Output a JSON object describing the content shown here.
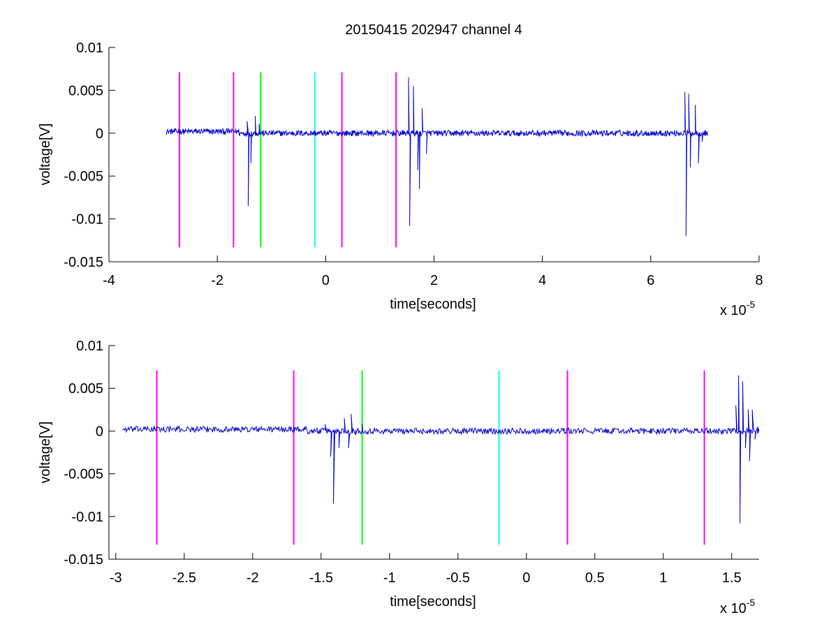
{
  "figure": {
    "title": "20150415 202947 channel 4",
    "background": "#ffffff"
  },
  "chart_data": [
    {
      "type": "line",
      "title": "20150415 202947 channel 4",
      "xlabel": "time[seconds]",
      "ylabel": "voltage[V]",
      "x_exponent_label": "x 10",
      "x_exponent": "-5",
      "xlim": [
        -4,
        8
      ],
      "ylim": [
        -0.015,
        0.01
      ],
      "xticks": [
        -4,
        -2,
        0,
        2,
        4,
        6,
        8
      ],
      "xtick_labels": [
        "-4",
        "-2",
        "0",
        "2",
        "4",
        "6",
        "8"
      ],
      "yticks": [
        -0.015,
        -0.01,
        -0.005,
        0,
        0.005,
        0.01
      ],
      "ytick_labels": [
        "-0.015",
        "-0.01",
        "-0.005",
        "0",
        "0.005",
        "0.01"
      ],
      "grid": false,
      "box": "left-bottom",
      "signal": {
        "color": "#0000cc",
        "x_start": -2.95,
        "x_end": 7.05,
        "baseline_noise": 0.00035,
        "features": [
          {
            "x": -2.72,
            "y": 0.0005
          },
          {
            "x": -1.45,
            "y": 0.0014
          },
          {
            "x": -1.43,
            "y": -0.0085
          },
          {
            "x": -1.38,
            "y": -0.0035
          },
          {
            "x": -1.3,
            "y": 0.002
          },
          {
            "x": -1.23,
            "y": 0.0011
          },
          {
            "x": 1.53,
            "y": 0.0065
          },
          {
            "x": 1.55,
            "y": -0.0108
          },
          {
            "x": 1.62,
            "y": 0.0055
          },
          {
            "x": 1.7,
            "y": -0.0043
          },
          {
            "x": 1.73,
            "y": -0.0065
          },
          {
            "x": 1.78,
            "y": 0.0029
          },
          {
            "x": 1.86,
            "y": -0.0024
          },
          {
            "x": 6.63,
            "y": 0.0048
          },
          {
            "x": 6.65,
            "y": -0.012
          },
          {
            "x": 6.7,
            "y": 0.0046
          },
          {
            "x": 6.73,
            "y": -0.004
          },
          {
            "x": 6.82,
            "y": 0.0033
          },
          {
            "x": 6.88,
            "y": -0.0035
          },
          {
            "x": 6.95,
            "y": -0.001
          }
        ]
      },
      "markers": [
        {
          "x": -2.7,
          "color": "#ff00ff"
        },
        {
          "x": -1.7,
          "color": "#ff00ff"
        },
        {
          "x": -1.2,
          "color": "#00ff00"
        },
        {
          "x": -0.2,
          "color": "#00ffff"
        },
        {
          "x": 0.3,
          "color": "#ff00ff"
        },
        {
          "x": 1.3,
          "color": "#ff00ff"
        }
      ],
      "marker_range": [
        -0.0133,
        0.0071
      ]
    },
    {
      "type": "line",
      "title": "",
      "xlabel": "time[seconds]",
      "ylabel": "voltage[V]",
      "x_exponent_label": "x 10",
      "x_exponent": "-5",
      "xlim": [
        -3.05,
        1.7
      ],
      "ylim": [
        -0.015,
        0.01
      ],
      "xticks": [
        -3,
        -2.5,
        -2,
        -1.5,
        -1,
        -0.5,
        0,
        0.5,
        1,
        1.5
      ],
      "xtick_labels": [
        "-3",
        "-2.5",
        "-2",
        "-1.5",
        "-1",
        "-0.5",
        "0",
        "0.5",
        "1",
        "1.5"
      ],
      "yticks": [
        -0.015,
        -0.01,
        -0.005,
        0,
        0.005,
        0.01
      ],
      "ytick_labels": [
        "-0.015",
        "-0.01",
        "-0.005",
        "0",
        "0.005",
        "0.01"
      ],
      "grid": false,
      "box": "left-bottom",
      "signal": {
        "color": "#0000cc",
        "x_start": -2.95,
        "x_end": 1.7,
        "baseline_noise": 0.00035,
        "features": [
          {
            "x": -2.72,
            "y": 0.0006
          },
          {
            "x": -1.47,
            "y": 0.0008
          },
          {
            "x": -1.43,
            "y": -0.003
          },
          {
            "x": -1.41,
            "y": -0.0085
          },
          {
            "x": -1.37,
            "y": -0.002
          },
          {
            "x": -1.33,
            "y": 0.0015
          },
          {
            "x": -1.3,
            "y": -0.002
          },
          {
            "x": -1.28,
            "y": 0.002
          },
          {
            "x": -1.25,
            "y": -0.0005
          },
          {
            "x": -1.2,
            "y": 0.0008
          },
          {
            "x": 1.53,
            "y": 0.003
          },
          {
            "x": 1.55,
            "y": 0.0065
          },
          {
            "x": 1.56,
            "y": -0.0108
          },
          {
            "x": 1.58,
            "y": 0.0058
          },
          {
            "x": 1.6,
            "y": -0.002
          },
          {
            "x": 1.62,
            "y": 0.0025
          },
          {
            "x": 1.63,
            "y": -0.0035
          },
          {
            "x": 1.65,
            "y": 0.0025
          },
          {
            "x": 1.67,
            "y": -0.001
          },
          {
            "x": 1.69,
            "y": 0.0005
          }
        ]
      },
      "markers": [
        {
          "x": -2.7,
          "color": "#ff00ff"
        },
        {
          "x": -1.7,
          "color": "#ff00ff"
        },
        {
          "x": -1.2,
          "color": "#00ff00"
        },
        {
          "x": -0.2,
          "color": "#00ffff"
        },
        {
          "x": 0.3,
          "color": "#ff00ff"
        },
        {
          "x": 1.3,
          "color": "#ff00ff"
        }
      ],
      "marker_range": [
        -0.0133,
        0.0071
      ]
    }
  ]
}
